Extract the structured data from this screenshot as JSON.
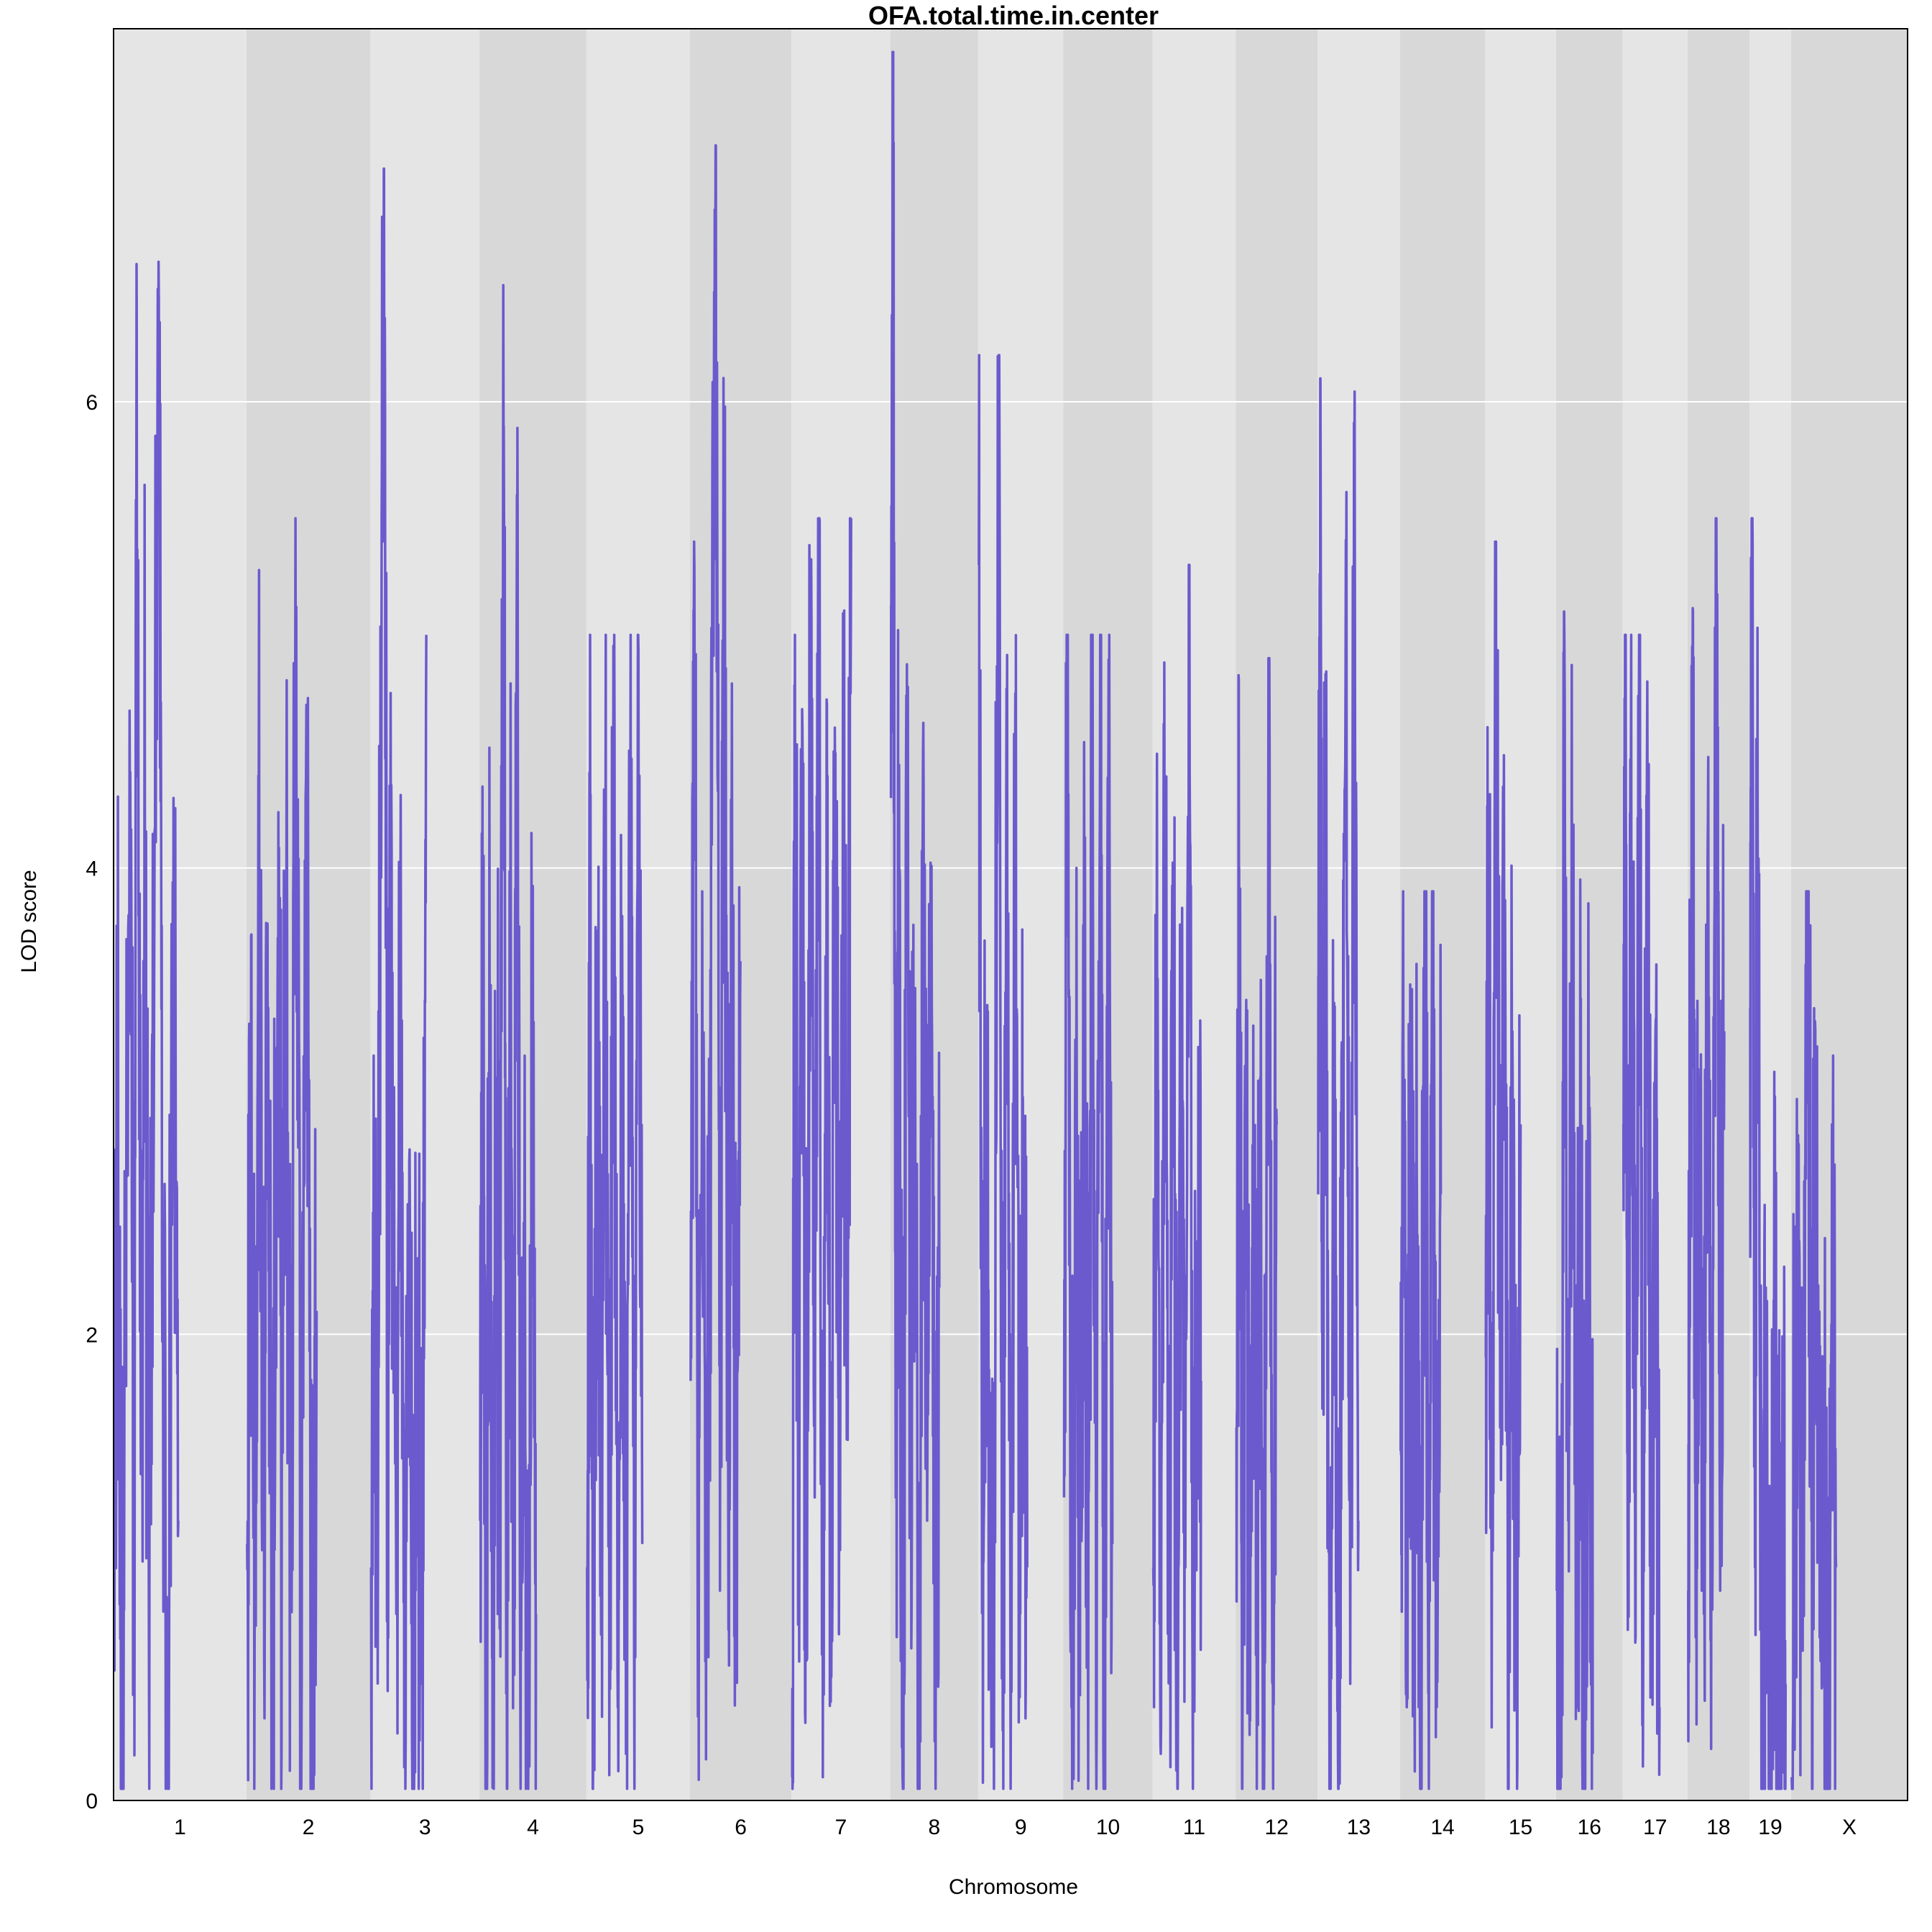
{
  "chart_data": {
    "type": "line",
    "title": "OFA.total.time.in.center",
    "xlabel": "Chromosome",
    "ylabel": "LOD score",
    "ylim": [
      0,
      7.6
    ],
    "yticks": [
      0,
      2,
      4,
      6
    ],
    "grid": true,
    "line_color": "#6a5acd",
    "band_colors": [
      "#e5e5e5",
      "#d8d8d8"
    ],
    "series": [
      {
        "values": [
          {
            "chr": "1",
            "peak": 6.6,
            "x": [
              1,
              6,
              12,
              18,
              25,
              30,
              34,
              40,
              46,
              52,
              58,
              66,
              72,
              80,
              88,
              95
            ],
            "lod": [
              1.0,
              3.1,
              0.4,
              2.3,
              3.9,
              0.5,
              6.4,
              1.4,
              4.2,
              0.5,
              3.2,
              6.6,
              2.1,
              0.4,
              4.3,
              1.2
            ]
          },
          {
            "chr": "2",
            "peak": 5.5,
            "x": [
              1,
              6,
              12,
              18,
              25,
              32,
              38,
              46,
              52,
              58,
              66,
              72,
              80,
              88,
              96,
              103
            ],
            "lod": [
              1.1,
              3.0,
              0.6,
              4.1,
              1.7,
              3.4,
              0.3,
              3.7,
              1.5,
              3.6,
              1.1,
              5.5,
              0.7,
              4.7,
              0.4,
              2.1
            ]
          },
          {
            "chr": "3",
            "peak": 7.0,
            "x": [
              1,
              5,
              10,
              15,
              20,
              25,
              30,
              38,
              44,
              50,
              56,
              63,
              70,
              76,
              82
            ],
            "lod": [
              1.0,
              2.5,
              1.1,
              4.4,
              7.0,
              1.5,
              4.1,
              0.8,
              3.8,
              0.3,
              2.4,
              0.4,
              1.9,
              0.5,
              5.0
            ]
          },
          {
            "chr": "4",
            "peak": 6.5,
            "x": [
              1,
              5,
              10,
              15,
              20,
              25,
              30,
              35,
              40,
              45,
              50,
              55,
              60,
              66,
              72,
              78,
              83
            ],
            "lod": [
              1.2,
              4.0,
              0.3,
              3.2,
              0.7,
              3.1,
              1.2,
              6.5,
              0.9,
              3.9,
              0.6,
              5.6,
              0.5,
              2.4,
              0.4,
              3.6,
              0.8
            ]
          },
          {
            "chr": "5",
            "peak": 5.0,
            "x": [
              1,
              5,
              10,
              16,
              22,
              28,
              34,
              40,
              46,
              52,
              58,
              64,
              70,
              76,
              82
            ],
            "lod": [
              1.0,
              3.6,
              0.2,
              3.5,
              1.3,
              4.0,
              0.9,
              4.9,
              0.4,
              3.0,
              0.2,
              4.5,
              0.7,
              5.0,
              1.1
            ]
          },
          {
            "chr": "6",
            "peak": 7.1,
            "x": [
              1,
              6,
              12,
              18,
              25,
              32,
              38,
              44,
              50,
              56,
              62,
              68,
              74
            ],
            "lod": [
              1.8,
              5.4,
              0.5,
              3.9,
              1.1,
              4.1,
              7.1,
              0.9,
              5.5,
              1.4,
              3.3,
              0.8,
              3.6
            ]
          },
          {
            "chr": "7",
            "peak": 5.5,
            "x": [
              1,
              5,
              10,
              16,
              22,
              28,
              34,
              40,
              46,
              52,
              58,
              64,
              70,
              76,
              82,
              88
            ],
            "lod": [
              0.1,
              5.0,
              1.1,
              4.6,
              0.6,
              4.9,
              1.3,
              5.5,
              0.1,
              4.7,
              0.9,
              4.3,
              1.4,
              3.7,
              1.8,
              5.5
            ]
          },
          {
            "chr": "8",
            "peak": 7.5,
            "x": [
              1,
              4,
              8,
              12,
              18,
              24,
              30,
              36,
              42,
              48,
              54,
              60,
              66,
              72
            ],
            "lod": [
              4.3,
              7.5,
              1.3,
              3.9,
              0.1,
              4.1,
              1.9,
              2.7,
              0.8,
              4.5,
              1.2,
              3.5,
              1.1,
              2.2
            ]
          },
          {
            "chr": "9",
            "peak": 6.2,
            "x": [
              1,
              6,
              12,
              18,
              24,
              30,
              36,
              42,
              48,
              54,
              60,
              66,
              72
            ],
            "lod": [
              5.3,
              1.1,
              2.9,
              0.5,
              1.6,
              6.2,
              0.3,
              4.3,
              0.5,
              4.3,
              0.8,
              2.6,
              1.0
            ]
          },
          {
            "chr": "10",
            "peak": 5.0,
            "x": [
              1,
              6,
              12,
              18,
              24,
              30,
              36,
              42,
              48,
              54,
              60,
              66,
              72
            ],
            "lod": [
              1.3,
              4.8,
              0.4,
              2.6,
              1.0,
              3.4,
              0.7,
              4.9,
              0.3,
              5.0,
              0.6,
              4.3,
              1.1
            ]
          },
          {
            "chr": "11",
            "peak": 5.3,
            "x": [
              1,
              6,
              12,
              18,
              24,
              30,
              36,
              42,
              48,
              54,
              60,
              66,
              71
            ],
            "lod": [
              1.0,
              3.7,
              0.2,
              4.1,
              0.8,
              3.9,
              0.3,
              3.6,
              1.0,
              5.3,
              0.4,
              2.4,
              1.8
            ]
          },
          {
            "chr": "12",
            "peak": 4.9,
            "x": [
              1,
              5,
              10,
              15,
              20,
              25,
              30,
              36,
              42,
              48,
              54,
              60
            ],
            "lod": [
              1.6,
              4.0,
              0.5,
              3.3,
              0.4,
              2.5,
              0.9,
              3.1,
              0.3,
              4.9,
              0.5,
              2.9
            ]
          },
          {
            "chr": "13",
            "peak": 6.1,
            "x": [
              1,
              4,
              8,
              12,
              18,
              24,
              30,
              36,
              42,
              48,
              54,
              60
            ],
            "lod": [
              2.6,
              6.1,
              1.8,
              4.4,
              0.3,
              3.3,
              0.2,
              2.8,
              5.0,
              0.5,
              5.4,
              1.2
            ]
          },
          {
            "chr": "14",
            "peak": 3.9,
            "x": [
              1,
              5,
              10,
              15,
              20,
              25,
              30,
              36,
              42,
              48,
              54,
              60
            ],
            "lod": [
              1.5,
              3.2,
              0.4,
              3.5,
              1.1,
              2.5,
              0.3,
              3.9,
              0.6,
              3.4,
              0.4,
              2.6
            ]
          },
          {
            "chr": "15",
            "peak": 5.4,
            "x": [
              1,
              5,
              10,
              16,
              22,
              28,
              34,
              40,
              46,
              52
            ],
            "lod": [
              1.9,
              3.6,
              1.1,
              5.4,
              1.6,
              3.7,
              0.6,
              3.3,
              0.5,
              2.9
            ]
          },
          {
            "chr": "16",
            "peak": 5.1,
            "x": [
              1,
              4,
              8,
              12,
              18,
              24,
              30,
              36,
              42,
              48,
              54
            ],
            "lod": [
              0.9,
              0.3,
              0.1,
              5.1,
              1.2,
              4.0,
              0.4,
              3.1,
              0.2,
              2.9,
              0.2
            ]
          },
          {
            "chr": "17",
            "peak": 5.0,
            "x": [
              1,
              4,
              8,
              12,
              18,
              24,
              30,
              36,
              42,
              48,
              54
            ],
            "lod": [
              2.9,
              4.3,
              1.1,
              4.5,
              1.4,
              5.0,
              0.6,
              4.8,
              0.5,
              3.3,
              0.4
            ]
          },
          {
            "chr": "18",
            "peak": 5.5,
            "x": [
              1,
              4,
              8,
              12,
              18,
              24,
              30,
              36,
              42,
              48,
              54
            ],
            "lod": [
              0.9,
              2.9,
              5.1,
              0.7,
              3.1,
              0.8,
              4.2,
              1.1,
              5.5,
              0.9,
              3.3
            ]
          },
          {
            "chr": "19",
            "peak": 5.5,
            "x": [
              1,
              4,
              8,
              12,
              18,
              24,
              30,
              36,
              42,
              48,
              53
            ],
            "lod": [
              3.4,
              5.5,
              1.0,
              4.3,
              0.3,
              2.2,
              0.2,
              1.9,
              0.3,
              1.3,
              0.5
            ]
          },
          {
            "chr": "X",
            "peak": 3.9,
            "x": [
              1,
              6,
              12,
              18,
              24,
              30,
              36,
              42,
              48,
              54,
              60,
              66
            ],
            "lod": [
              0.1,
              1.6,
              2.4,
              0.9,
              3.9,
              1.2,
              3.0,
              0.7,
              1.4,
              0.2,
              2.9,
              1.0
            ]
          }
        ]
      }
    ],
    "chromosomes": [
      {
        "label": "1",
        "length": 195
      },
      {
        "label": "2",
        "length": 182
      },
      {
        "label": "3",
        "length": 160
      },
      {
        "label": "4",
        "length": 157
      },
      {
        "label": "5",
        "length": 152
      },
      {
        "label": "6",
        "length": 149
      },
      {
        "label": "7",
        "length": 145
      },
      {
        "label": "8",
        "length": 129
      },
      {
        "label": "9",
        "length": 125
      },
      {
        "label": "10",
        "length": 131
      },
      {
        "label": "11",
        "length": 122
      },
      {
        "label": "12",
        "length": 120
      },
      {
        "label": "13",
        "length": 121
      },
      {
        "label": "14",
        "length": 125
      },
      {
        "label": "15",
        "length": 104
      },
      {
        "label": "16",
        "length": 98
      },
      {
        "label": "17",
        "length": 95
      },
      {
        "label": "18",
        "length": 91
      },
      {
        "label": "19",
        "length": 61
      },
      {
        "label": "X",
        "length": 171
      }
    ]
  }
}
